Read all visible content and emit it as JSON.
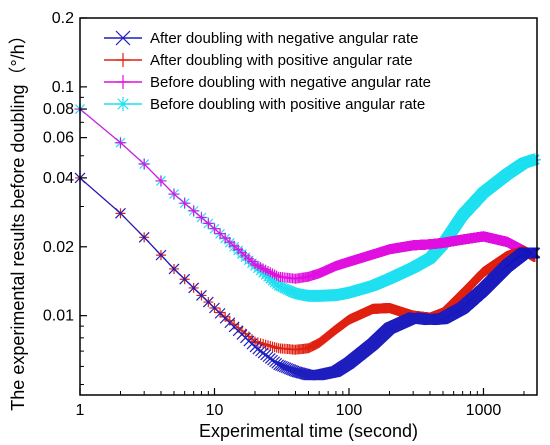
{
  "chart_data": {
    "type": "line",
    "title": "",
    "xlabel": "Experimental time (second)",
    "ylabel": "The experimental results before doubling（°/h）",
    "x_scale": "log",
    "y_scale": "log",
    "xlim": [
      1,
      2500
    ],
    "ylim": [
      0.0045,
      0.2
    ],
    "x_ticks": [
      1,
      10,
      100,
      1000
    ],
    "x_tick_labels": [
      "1",
      "10",
      "100",
      "1000"
    ],
    "y_ticks": [
      0.01,
      0.02,
      0.04,
      0.06,
      0.08,
      0.1,
      0.2
    ],
    "y_tick_labels": [
      "0.01",
      "0.02",
      "0.04",
      "0.06",
      "0.08",
      "0.1",
      "0.2"
    ],
    "grid": false,
    "legend_position": "top-right",
    "series": [
      {
        "name": "After doubling with negative angular rate",
        "color": "#1f1fbf",
        "marker": "x",
        "x": [
          1,
          2,
          3,
          5,
          10,
          20,
          30,
          40,
          50,
          60,
          80,
          100,
          150,
          200,
          300,
          400,
          500,
          700,
          1000,
          1500,
          2000,
          2500
        ],
        "y": [
          0.04,
          0.028,
          0.022,
          0.016,
          0.0108,
          0.0073,
          0.0061,
          0.0057,
          0.0055,
          0.0055,
          0.0057,
          0.0062,
          0.0075,
          0.0088,
          0.0098,
          0.0096,
          0.0097,
          0.0108,
          0.013,
          0.0165,
          0.0188,
          0.0188
        ]
      },
      {
        "name": "After doubling with positive  angular rate",
        "color": "#e02010",
        "marker": "+",
        "x": [
          1,
          2,
          3,
          5,
          10,
          20,
          30,
          40,
          50,
          60,
          80,
          100,
          150,
          200,
          300,
          400,
          500,
          700,
          1000,
          1500,
          2000,
          2500
        ],
        "y": [
          0.04,
          0.028,
          0.022,
          0.016,
          0.0108,
          0.0077,
          0.0072,
          0.0071,
          0.0072,
          0.0076,
          0.0087,
          0.0096,
          0.0107,
          0.0108,
          0.01,
          0.0098,
          0.0103,
          0.0125,
          0.0155,
          0.0182,
          0.0192,
          0.0178
        ]
      },
      {
        "name": "Before doubling with negative angular rate",
        "color": "#e010e0",
        "marker": "+",
        "x": [
          1,
          2,
          3,
          5,
          10,
          20,
          30,
          40,
          50,
          60,
          80,
          100,
          150,
          200,
          300,
          400,
          500,
          700,
          1000,
          1500,
          2000,
          2500
        ],
        "y": [
          0.08,
          0.057,
          0.046,
          0.034,
          0.024,
          0.0168,
          0.0148,
          0.0145,
          0.0148,
          0.0153,
          0.0165,
          0.0172,
          0.0185,
          0.0195,
          0.0203,
          0.0205,
          0.0208,
          0.0215,
          0.0222,
          0.021,
          0.0192,
          0.0178
        ]
      },
      {
        "name": "Before doubling with positive angular rate",
        "color": "#20e0f0",
        "marker": "*",
        "x": [
          1,
          2,
          3,
          5,
          10,
          20,
          30,
          40,
          50,
          60,
          80,
          100,
          150,
          200,
          300,
          400,
          500,
          700,
          1000,
          1500,
          2000,
          2500
        ],
        "y": [
          0.08,
          0.057,
          0.046,
          0.034,
          0.024,
          0.0165,
          0.0135,
          0.0125,
          0.0122,
          0.0122,
          0.0123,
          0.0126,
          0.0135,
          0.0145,
          0.0162,
          0.0178,
          0.0205,
          0.0275,
          0.0345,
          0.0415,
          0.0465,
          0.0485
        ]
      }
    ]
  }
}
